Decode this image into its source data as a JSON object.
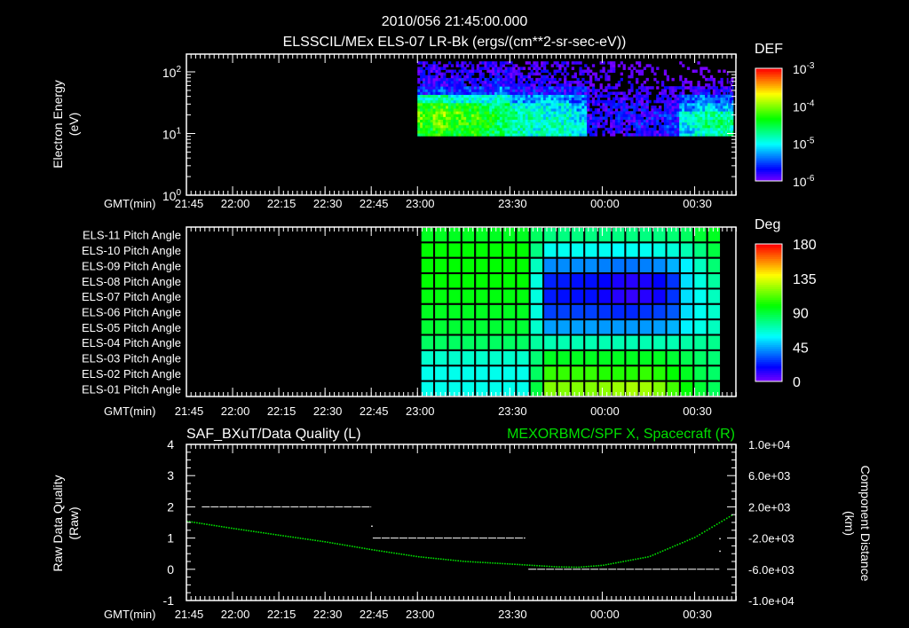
{
  "header": {
    "timestamp": "2010/056 21:45:00.000"
  },
  "colors": {
    "background": "#000000",
    "axis": "#ffffff",
    "spacecraft_series": "#00e000",
    "quality_series": "#ffffff"
  },
  "time_axis": {
    "label": "GMT(min)",
    "origin": "21:45",
    "range_min": [
      0,
      178.5
    ],
    "ticks": [
      {
        "label": "21:45",
        "t": 0
      },
      {
        "label": "22:00",
        "t": 15
      },
      {
        "label": "22:15",
        "t": 30
      },
      {
        "label": "22:30",
        "t": 45
      },
      {
        "label": "22:45",
        "t": 60
      },
      {
        "label": "23:00",
        "t": 75
      },
      {
        "label": "23:30",
        "t": 105
      },
      {
        "label": "00:00",
        "t": 135
      },
      {
        "label": "00:30",
        "t": 165
      }
    ]
  },
  "chart_data": [
    {
      "type": "heatmap",
      "title": "ELSSCIL/MEx ELS-07 LR-Bk  (ergs/(cm**2-sr-sec-eV))",
      "ylabel": [
        "Electron Energy",
        "(eV)"
      ],
      "yscale": "log",
      "ylim": [
        1,
        195
      ],
      "yticks": [
        {
          "base": "10",
          "exp": "0",
          "value": 1
        },
        {
          "base": "10",
          "exp": "1",
          "value": 10
        },
        {
          "base": "10",
          "exp": "2",
          "value": 100
        }
      ],
      "colorbar": {
        "label": "DEF",
        "log_range": [
          -6,
          -3
        ],
        "ticks": [
          {
            "base": "10",
            "exp": "-3",
            "value": -3
          },
          {
            "base": "10",
            "exp": "-4",
            "value": -4
          },
          {
            "base": "10",
            "exp": "-5",
            "value": -5
          },
          {
            "base": "10",
            "exp": "-6",
            "value": -6
          }
        ]
      },
      "time_start_min": 75,
      "time_step_min": 5,
      "energy_log_range": [
        0.96,
        2.17
      ],
      "energies_eV": [
        10,
        14,
        20,
        28,
        40,
        56,
        80,
        112,
        150
      ],
      "log_def": [
        [
          -4.4,
          -4.3,
          -4.4,
          -4.3,
          -4.5,
          -4.6,
          -4.8,
          -4.9,
          -4.9,
          -4.9,
          -5.0,
          -5.9,
          -5.9,
          -5.8,
          -5.8,
          -5.9,
          -5.7,
          -5.1,
          -4.9,
          -4.8,
          -4.8
        ],
        [
          -4.2,
          -4.1,
          -4.2,
          -4.3,
          -4.4,
          -4.6,
          -4.8,
          -4.8,
          -4.8,
          -4.9,
          -5.0,
          -5.8,
          -5.9,
          -5.8,
          -5.7,
          -5.8,
          -5.6,
          -5.0,
          -4.6,
          -4.7,
          -4.7
        ],
        [
          -4.1,
          -4.0,
          -4.1,
          -4.2,
          -4.4,
          -4.5,
          -4.7,
          -4.8,
          -4.9,
          -4.9,
          -5.1,
          -5.8,
          -5.8,
          -5.7,
          -5.8,
          -5.7,
          -5.6,
          -5.0,
          -4.7,
          -4.8,
          -4.8
        ],
        [
          -4.3,
          -4.2,
          -4.4,
          -4.4,
          -4.6,
          -4.6,
          -4.9,
          -5.0,
          -5.0,
          -5.0,
          -5.2,
          -5.9,
          -5.8,
          -5.8,
          -5.8,
          -5.9,
          -5.7,
          -5.3,
          -5.1,
          -5.2,
          -5.2
        ],
        [
          -4.8,
          -4.8,
          -4.9,
          -4.9,
          -5.0,
          -4.9,
          -5.3,
          -5.3,
          -5.2,
          -5.3,
          -5.4,
          -5.9,
          -5.9,
          -5.9,
          -5.9,
          -5.9,
          -5.8,
          -5.5,
          -5.4,
          -5.5,
          -5.5
        ],
        [
          -5.6,
          -5.5,
          -5.6,
          -5.6,
          -5.6,
          -5.3,
          -5.7,
          -5.7,
          -5.6,
          -5.7,
          -5.7,
          -5.9,
          -6.0,
          -6.0,
          -5.9,
          -6.0,
          -5.9,
          -5.9,
          -5.8,
          -5.8,
          -5.8
        ],
        [
          -5.8,
          -5.8,
          -5.8,
          -5.9,
          -5.8,
          -5.7,
          -5.9,
          -5.9,
          -5.9,
          -5.9,
          -5.9,
          -6.0,
          -6.1,
          -6.0,
          -6.1,
          -6.1,
          -6.1,
          -6.1,
          -6.1,
          -6.1,
          -6.1
        ],
        [
          -5.9,
          -5.9,
          -5.9,
          -5.9,
          -5.9,
          -5.8,
          -5.9,
          -6.0,
          -5.9,
          -6.0,
          -6.0,
          -6.0,
          -6.1,
          -6.1,
          -6.2,
          -6.2,
          -6.2,
          -6.2,
          -6.2,
          -6.2,
          -6.2
        ],
        [
          -5.9,
          -5.9,
          -5.9,
          -6.0,
          -5.9,
          -5.9,
          -6.0,
          -6.0,
          -6.0,
          -6.0,
          -6.0,
          -6.1,
          -6.1,
          -6.2,
          -6.2,
          -6.2,
          -6.3,
          -6.2,
          -6.2,
          -6.3,
          -6.3
        ]
      ]
    },
    {
      "type": "heatmap",
      "ylabels": [
        "ELS-11 Pitch Angle",
        "ELS-10 Pitch Angle",
        "ELS-09 Pitch Angle",
        "ELS-08 Pitch Angle",
        "ELS-07 Pitch Angle",
        "ELS-06 Pitch Angle",
        "ELS-05 Pitch Angle",
        "ELS-04 Pitch Angle",
        "ELS-03 Pitch Angle",
        "ELS-02 Pitch Angle",
        "ELS-01 Pitch Angle"
      ],
      "colorbar": {
        "label": "Deg",
        "range": [
          0,
          180
        ],
        "ticks": [
          "180",
          "135",
          "90",
          "45",
          "0"
        ]
      },
      "time_range_min": [
        76,
        173.5
      ],
      "pitch_deg": [
        [
          95,
          95,
          95,
          95,
          95,
          95,
          95,
          95,
          85,
          80,
          80,
          80,
          80,
          80,
          80,
          80,
          80,
          80,
          82,
          85,
          92,
          95
        ],
        [
          100,
          100,
          100,
          100,
          100,
          100,
          100,
          100,
          80,
          62,
          62,
          62,
          62,
          62,
          60,
          62,
          62,
          64,
          66,
          72,
          80,
          90
        ],
        [
          100,
          100,
          100,
          100,
          100,
          100,
          100,
          100,
          70,
          42,
          42,
          42,
          42,
          40,
          38,
          38,
          40,
          42,
          48,
          58,
          70,
          82
        ],
        [
          100,
          100,
          100,
          100,
          100,
          100,
          100,
          100,
          65,
          25,
          24,
          22,
          22,
          20,
          16,
          14,
          16,
          20,
          28,
          55,
          65,
          75
        ],
        [
          98,
          98,
          98,
          98,
          98,
          98,
          98,
          98,
          65,
          24,
          22,
          22,
          22,
          18,
          14,
          12,
          14,
          18,
          28,
          55,
          62,
          70
        ],
        [
          95,
          95,
          95,
          95,
          95,
          95,
          95,
          95,
          65,
          30,
          30,
          30,
          30,
          28,
          26,
          26,
          28,
          30,
          34,
          55,
          62,
          68
        ],
        [
          92,
          92,
          92,
          92,
          92,
          92,
          92,
          92,
          68,
          45,
          45,
          45,
          45,
          44,
          44,
          44,
          44,
          45,
          48,
          58,
          64,
          70
        ],
        [
          85,
          85,
          85,
          85,
          85,
          85,
          85,
          85,
          75,
          72,
          72,
          72,
          72,
          72,
          72,
          72,
          72,
          72,
          72,
          74,
          76,
          78
        ],
        [
          68,
          68,
          68,
          68,
          68,
          68,
          68,
          68,
          82,
          95,
          95,
          95,
          95,
          95,
          95,
          95,
          95,
          95,
          92,
          88,
          84,
          82
        ],
        [
          63,
          63,
          63,
          63,
          63,
          63,
          63,
          63,
          85,
          108,
          108,
          108,
          108,
          105,
          105,
          105,
          108,
          105,
          100,
          95,
          88,
          84
        ],
        [
          63,
          63,
          63,
          63,
          63,
          63,
          63,
          63,
          90,
          120,
          120,
          120,
          120,
          122,
          124,
          126,
          125,
          120,
          110,
          100,
          92,
          86
        ]
      ]
    },
    {
      "type": "line",
      "title_left": "SAF_BXuT/Data Quality (L)",
      "title_right": "MEXORBMC/SPF X, Spacecraft (R)",
      "ylabel_left": [
        "Raw Data Quality",
        "(Raw)"
      ],
      "ylabel_right": [
        "Component Distance",
        "(km)"
      ],
      "ylim_left": [
        -1,
        4
      ],
      "yticks_left": [
        "4",
        "3",
        "2",
        "1",
        "0",
        "-1"
      ],
      "ylim_right": [
        -10000,
        10000
      ],
      "yticks_right": [
        "1.0e+04",
        "6.0e+03",
        "2.0e+03",
        "-2.0e+03",
        "-6.0e+03",
        "-1.0e+04"
      ],
      "series": [
        {
          "name": "Data Quality",
          "axis": "left",
          "segments": [
            {
              "t_start": 5,
              "t_end": 60,
              "value": 2
            },
            {
              "t_start": 60.5,
              "t_end": 110,
              "value": 1
            },
            {
              "t_start": 111,
              "t_end": 173,
              "value": 0
            }
          ],
          "points": [
            {
              "t": 60,
              "value": 1.4
            },
            {
              "t": 173,
              "value": 1.0
            },
            {
              "t": 173,
              "value": 0.6
            }
          ]
        },
        {
          "name": "Spacecraft X",
          "axis": "right",
          "t": [
            0,
            15,
            30,
            45,
            60,
            75,
            90,
            105,
            120,
            127,
            135,
            150,
            165,
            177
          ],
          "values_km": [
            240,
            -680,
            -1550,
            -2400,
            -3400,
            -4300,
            -4900,
            -5240,
            -5600,
            -5650,
            -5400,
            -4300,
            -1800,
            1040
          ]
        }
      ]
    }
  ]
}
